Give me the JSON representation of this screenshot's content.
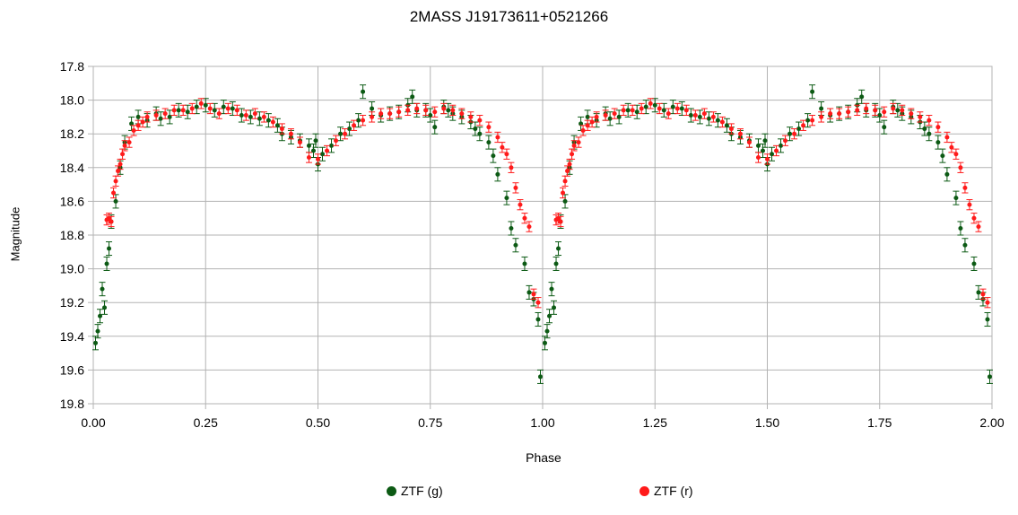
{
  "chart_data": {
    "type": "scatter",
    "title": "2MASS J19173611+0521266",
    "xlabel": "Phase",
    "ylabel": "Magnitude",
    "xlim": [
      0,
      2
    ],
    "ylim": [
      17.8,
      19.8
    ],
    "y_inverted": true,
    "grid": true,
    "legend_position": "bottom",
    "x_ticks": [
      "0.00",
      "0.25",
      "0.50",
      "0.75",
      "1.00",
      "1.25",
      "1.50",
      "1.75",
      "2.00"
    ],
    "y_ticks": [
      "17.8",
      "18.0",
      "18.2",
      "18.4",
      "18.6",
      "18.8",
      "19.0",
      "19.2",
      "19.4",
      "19.6",
      "19.8"
    ],
    "series": [
      {
        "name": "ZTF (g)",
        "color": "#0c5a14",
        "error": 0.04,
        "x": [
          0.005,
          0.01,
          0.015,
          0.02,
          0.025,
          0.03,
          0.035,
          0.04,
          0.05,
          0.06,
          0.07,
          0.085,
          0.1,
          0.12,
          0.14,
          0.15,
          0.17,
          0.19,
          0.21,
          0.23,
          0.25,
          0.27,
          0.29,
          0.31,
          0.33,
          0.35,
          0.37,
          0.39,
          0.41,
          0.42,
          0.44,
          0.46,
          0.48,
          0.49,
          0.495,
          0.5,
          0.51,
          0.53,
          0.55,
          0.57,
          0.59,
          0.6,
          0.62,
          0.64,
          0.66,
          0.68,
          0.7,
          0.71,
          0.72,
          0.74,
          0.75,
          0.76,
          0.78,
          0.79,
          0.8,
          0.82,
          0.84,
          0.85,
          0.86,
          0.88,
          0.89,
          0.9,
          0.92,
          0.93,
          0.94,
          0.96,
          0.97,
          0.98,
          0.99,
          0.995
        ],
        "values": [
          19.44,
          19.37,
          19.28,
          19.12,
          19.23,
          18.97,
          18.88,
          18.72,
          18.6,
          18.4,
          18.25,
          18.14,
          18.1,
          18.12,
          18.08,
          18.11,
          18.1,
          18.06,
          18.07,
          18.04,
          18.03,
          18.06,
          18.04,
          18.05,
          18.09,
          18.1,
          18.11,
          18.12,
          18.15,
          18.2,
          18.22,
          18.24,
          18.27,
          18.3,
          18.24,
          18.38,
          18.32,
          18.27,
          18.2,
          18.17,
          18.12,
          17.95,
          18.05,
          18.09,
          18.08,
          18.07,
          18.03,
          17.98,
          18.06,
          18.06,
          18.09,
          18.16,
          18.04,
          18.06,
          18.08,
          18.1,
          18.13,
          18.17,
          18.2,
          18.25,
          18.33,
          18.44,
          18.58,
          18.76,
          18.86,
          18.97,
          19.14,
          19.18,
          19.3,
          19.64
        ]
      },
      {
        "name": "ZTF (r)",
        "color": "#ff1a1a",
        "error": 0.03,
        "x": [
          0.03,
          0.035,
          0.04,
          0.045,
          0.05,
          0.055,
          0.06,
          0.065,
          0.07,
          0.08,
          0.09,
          0.1,
          0.11,
          0.12,
          0.14,
          0.16,
          0.18,
          0.2,
          0.22,
          0.24,
          0.26,
          0.28,
          0.3,
          0.32,
          0.34,
          0.36,
          0.38,
          0.4,
          0.42,
          0.44,
          0.46,
          0.48,
          0.5,
          0.52,
          0.54,
          0.56,
          0.58,
          0.6,
          0.62,
          0.64,
          0.66,
          0.68,
          0.7,
          0.72,
          0.74,
          0.76,
          0.78,
          0.8,
          0.82,
          0.84,
          0.86,
          0.88,
          0.9,
          0.91,
          0.92,
          0.93,
          0.94,
          0.95,
          0.96,
          0.97,
          0.98,
          0.99
        ],
        "values": [
          18.71,
          18.7,
          18.72,
          18.55,
          18.48,
          18.42,
          18.38,
          18.32,
          18.27,
          18.25,
          18.18,
          18.15,
          18.13,
          18.1,
          18.09,
          18.08,
          18.06,
          18.06,
          18.05,
          18.02,
          18.05,
          18.08,
          18.05,
          18.06,
          18.09,
          18.08,
          18.1,
          18.13,
          18.17,
          18.2,
          18.25,
          18.34,
          18.35,
          18.3,
          18.24,
          18.2,
          18.15,
          18.12,
          18.1,
          18.08,
          18.08,
          18.07,
          18.06,
          18.05,
          18.06,
          18.07,
          18.05,
          18.06,
          18.08,
          18.1,
          18.12,
          18.16,
          18.22,
          18.28,
          18.32,
          18.4,
          18.52,
          18.62,
          18.7,
          18.75,
          19.15,
          19.2
        ]
      }
    ]
  }
}
